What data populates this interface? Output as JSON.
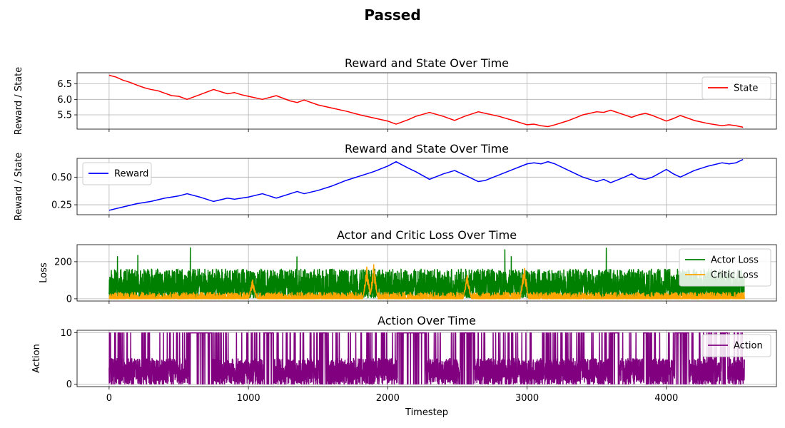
{
  "figure_title": "Passed",
  "chart_data": [
    {
      "type": "line",
      "title": "Reward and State Over Time",
      "xlabel": "",
      "ylabel": "Reward / State",
      "xlim": [
        -230,
        4790
      ],
      "ylim": [
        5.04,
        6.86
      ],
      "yticks": [
        5.5,
        6.0,
        6.5
      ],
      "ytick_labels": [
        "5.5",
        "6.0",
        "6.5"
      ],
      "xticks": [
        0,
        1000,
        2000,
        3000,
        4000
      ],
      "show_xtick_labels": false,
      "grid": true,
      "legend_position": "upper right",
      "series": [
        {
          "name": "State",
          "color": "#ff0000",
          "x": [
            0,
            50,
            100,
            150,
            200,
            250,
            300,
            350,
            400,
            450,
            500,
            560,
            650,
            750,
            850,
            900,
            950,
            1000,
            1100,
            1200,
            1300,
            1350,
            1400,
            1450,
            1500,
            1600,
            1700,
            1800,
            1900,
            2000,
            2060,
            2150,
            2200,
            2300,
            2400,
            2480,
            2550,
            2650,
            2700,
            2800,
            2900,
            3000,
            3050,
            3100,
            3150,
            3200,
            3300,
            3400,
            3450,
            3500,
            3550,
            3600,
            3700,
            3750,
            3800,
            3850,
            3900,
            4000,
            4050,
            4100,
            4150,
            4200,
            4300,
            4400,
            4450,
            4500,
            4550
          ],
          "y": [
            6.78,
            6.72,
            6.62,
            6.55,
            6.46,
            6.38,
            6.32,
            6.28,
            6.2,
            6.12,
            6.1,
            6.0,
            6.15,
            6.32,
            6.18,
            6.22,
            6.15,
            6.1,
            6.0,
            6.12,
            5.95,
            5.9,
            5.98,
            5.9,
            5.82,
            5.72,
            5.62,
            5.5,
            5.4,
            5.3,
            5.2,
            5.35,
            5.45,
            5.58,
            5.45,
            5.32,
            5.45,
            5.6,
            5.55,
            5.45,
            5.32,
            5.18,
            5.2,
            5.15,
            5.12,
            5.18,
            5.32,
            5.5,
            5.55,
            5.6,
            5.58,
            5.65,
            5.5,
            5.42,
            5.5,
            5.55,
            5.48,
            5.3,
            5.38,
            5.48,
            5.4,
            5.32,
            5.22,
            5.15,
            5.18,
            5.15,
            5.1
          ]
        }
      ]
    },
    {
      "type": "line",
      "title": "Reward and State Over Time",
      "xlabel": "",
      "ylabel": "Reward / State",
      "xlim": [
        -230,
        4790
      ],
      "ylim": [
        0.16,
        0.67
      ],
      "yticks": [
        0.25,
        0.5
      ],
      "ytick_labels": [
        "0.25",
        "0.50"
      ],
      "xticks": [
        0,
        1000,
        2000,
        3000,
        4000
      ],
      "show_xtick_labels": false,
      "grid": true,
      "legend_position": "upper left",
      "series": [
        {
          "name": "Reward",
          "color": "#0000ff",
          "x": [
            0,
            100,
            200,
            300,
            400,
            450,
            500,
            560,
            650,
            750,
            850,
            900,
            950,
            1000,
            1100,
            1200,
            1300,
            1350,
            1400,
            1500,
            1600,
            1700,
            1800,
            1900,
            2000,
            2060,
            2150,
            2200,
            2300,
            2400,
            2480,
            2550,
            2650,
            2700,
            2800,
            2900,
            3000,
            3050,
            3100,
            3150,
            3200,
            3300,
            3400,
            3450,
            3500,
            3550,
            3600,
            3700,
            3750,
            3800,
            3850,
            3900,
            4000,
            4050,
            4100,
            4150,
            4200,
            4300,
            4400,
            4450,
            4500,
            4550
          ],
          "y": [
            0.2,
            0.23,
            0.26,
            0.28,
            0.31,
            0.32,
            0.33,
            0.35,
            0.32,
            0.28,
            0.31,
            0.3,
            0.31,
            0.32,
            0.35,
            0.31,
            0.35,
            0.37,
            0.35,
            0.38,
            0.42,
            0.47,
            0.51,
            0.55,
            0.6,
            0.64,
            0.58,
            0.55,
            0.48,
            0.53,
            0.56,
            0.52,
            0.46,
            0.47,
            0.52,
            0.57,
            0.62,
            0.63,
            0.62,
            0.64,
            0.62,
            0.56,
            0.5,
            0.48,
            0.46,
            0.48,
            0.45,
            0.5,
            0.53,
            0.49,
            0.48,
            0.5,
            0.57,
            0.53,
            0.5,
            0.53,
            0.56,
            0.6,
            0.63,
            0.62,
            0.63,
            0.66
          ]
        }
      ]
    },
    {
      "type": "line",
      "title": "Actor and Critic Loss Over Time",
      "xlabel": "",
      "ylabel": "Loss",
      "xlim": [
        -230,
        4790
      ],
      "ylim": [
        -12,
        292
      ],
      "yticks": [
        0,
        200
      ],
      "ytick_labels": [
        "0",
        "200"
      ],
      "xticks": [
        0,
        1000,
        2000,
        3000,
        4000
      ],
      "show_xtick_labels": false,
      "grid": true,
      "legend_position": "upper right",
      "series": [
        {
          "name": "Actor Loss",
          "color": "#008000",
          "x_start": 0,
          "x_end": 4560,
          "n_points": 4560,
          "typical_range": [
            5,
            160
          ],
          "mean": 80,
          "max": 280
        },
        {
          "name": "Critic Loss",
          "color": "#ffa500",
          "x_start": 0,
          "x_end": 4560,
          "n_points": 4560,
          "typical_range": [
            0,
            35
          ],
          "spikes_x": [
            1030,
            1850,
            1900,
            2570,
            2980
          ],
          "spikes_y": [
            110,
            180,
            190,
            140,
            190
          ]
        }
      ]
    },
    {
      "type": "line",
      "title": "Action Over Time",
      "xlabel": "Timestep",
      "ylabel": "Action",
      "xlim": [
        -230,
        4790
      ],
      "ylim": [
        -0.5,
        10.5
      ],
      "yticks": [
        0,
        10
      ],
      "ytick_labels": [
        "0",
        "10"
      ],
      "xticks": [
        0,
        1000,
        2000,
        3000,
        4000
      ],
      "xtick_labels": [
        "0",
        "1000",
        "2000",
        "3000",
        "4000"
      ],
      "show_xtick_labels": true,
      "grid": true,
      "legend_position": "upper right",
      "series": [
        {
          "name": "Action",
          "color": "#800080",
          "x_start": 0,
          "x_end": 4560,
          "n_points": 4560,
          "range": [
            0,
            10
          ],
          "saturated_intervals": [
            [
              570,
              740
            ],
            [
              1110,
              1180
            ],
            [
              1510,
              1560
            ],
            [
              2070,
              2270
            ],
            [
              2520,
              2620
            ],
            [
              3600,
              3660
            ],
            [
              3840,
              3870
            ],
            [
              4060,
              4160
            ],
            [
              4390,
              4440
            ]
          ]
        }
      ]
    }
  ]
}
